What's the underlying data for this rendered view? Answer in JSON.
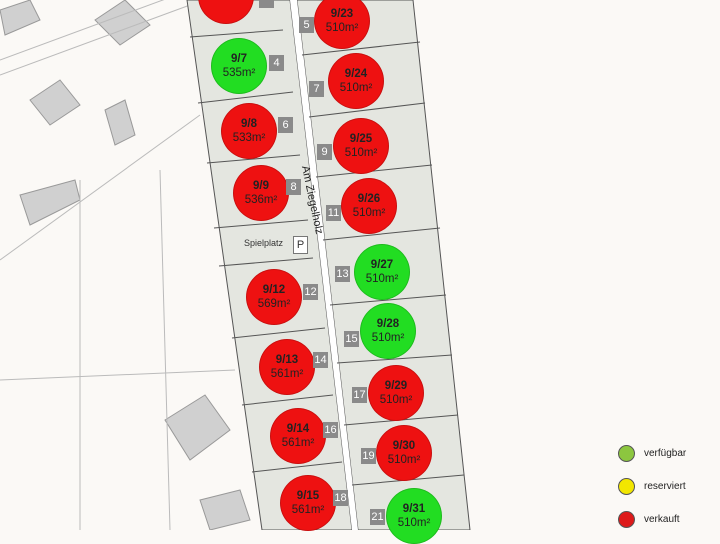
{
  "colors": {
    "available": "#22dd22",
    "reserved": "#f2e600",
    "sold": "#ee1111",
    "legend_available": "#8cc63f",
    "legend_sold": "#dd1a1a"
  },
  "street_name": "Am Ziegelholz",
  "playground_label": "Spielplatz",
  "parking_label": "P",
  "plots_left": [
    {
      "id": "",
      "area": "",
      "status": "sold",
      "house": ""
    },
    {
      "id": "9/7",
      "area": "535m²",
      "status": "available",
      "house": "4"
    },
    {
      "id": "9/8",
      "area": "533m²",
      "status": "sold",
      "house": "6"
    },
    {
      "id": "9/9",
      "area": "536m²",
      "status": "sold",
      "house": "8"
    },
    {
      "id": "9/12",
      "area": "569m²",
      "status": "sold",
      "house": "12"
    },
    {
      "id": "9/13",
      "area": "561m²",
      "status": "sold",
      "house": "14"
    },
    {
      "id": "9/14",
      "area": "561m²",
      "status": "sold",
      "house": "16"
    },
    {
      "id": "9/15",
      "area": "561m²",
      "status": "sold",
      "house": "18"
    }
  ],
  "plots_right": [
    {
      "id": "9/23",
      "area": "510m²",
      "status": "sold",
      "house": "5"
    },
    {
      "id": "9/24",
      "area": "510m²",
      "status": "sold",
      "house": "7"
    },
    {
      "id": "9/25",
      "area": "510m²",
      "status": "sold",
      "house": "9"
    },
    {
      "id": "9/26",
      "area": "510m²",
      "status": "sold",
      "house": "11"
    },
    {
      "id": "9/27",
      "area": "510m²",
      "status": "available",
      "house": "13"
    },
    {
      "id": "9/28",
      "area": "510m²",
      "status": "available",
      "house": "15"
    },
    {
      "id": "9/29",
      "area": "510m²",
      "status": "sold",
      "house": "17"
    },
    {
      "id": "9/30",
      "area": "510m²",
      "status": "sold",
      "house": "19"
    },
    {
      "id": "9/31",
      "area": "510m²",
      "status": "available",
      "house": "21"
    }
  ],
  "legend": [
    {
      "label": "verfügbar",
      "status": "available"
    },
    {
      "label": "reserviert",
      "status": "reserved"
    },
    {
      "label": "verkauft",
      "status": "sold"
    }
  ]
}
